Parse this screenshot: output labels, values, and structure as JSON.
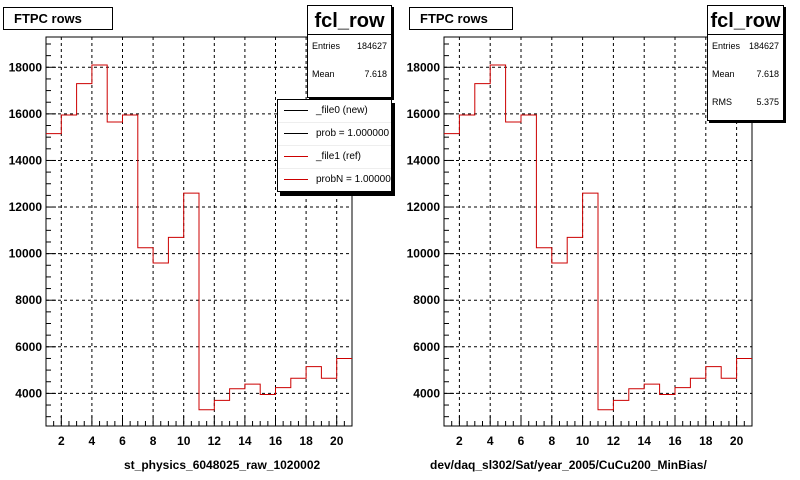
{
  "chart_data": [
    {
      "type": "histogram",
      "title": "FTPC rows",
      "xlabel": "st_physics_6048025_raw_1020002",
      "stats": {
        "name": "fcl_row",
        "entries_label": "Entries",
        "entries": "184627",
        "mean_label": "Mean",
        "mean": "7.618"
      },
      "legend": [
        {
          "label": "_file0 (new)",
          "color": "#000000"
        },
        {
          "label": "prob = 1.000000",
          "color": "#000000"
        },
        {
          "label": "_file1 (ref)",
          "color": "#cc0000"
        },
        {
          "label": "probN = 1.000000",
          "color": "#cc0000"
        }
      ],
      "xlim": [
        1,
        21
      ],
      "ylim": [
        2600,
        19300
      ],
      "xticks": [
        2,
        4,
        6,
        8,
        10,
        12,
        14,
        16,
        18,
        20
      ],
      "yticks": [
        4000,
        6000,
        8000,
        10000,
        12000,
        14000,
        16000,
        18000
      ],
      "bin_edges": [
        1,
        2,
        3,
        4,
        5,
        6,
        7,
        8,
        9,
        10,
        11,
        12,
        13,
        14,
        15,
        16,
        17,
        18,
        19,
        20,
        21
      ],
      "series": [
        {
          "color": "#cc0000",
          "values": [
            15150,
            15950,
            17300,
            18100,
            15650,
            15950,
            10250,
            9600,
            10700,
            12600,
            3300,
            3700,
            4200,
            4400,
            3950,
            4250,
            4650,
            5150,
            4650,
            5500
          ]
        }
      ],
      "grid": true
    },
    {
      "type": "histogram",
      "title": "FTPC rows",
      "xlabel": "dev/daq_sl302/Sat/year_2005/CuCu200_MinBias/",
      "stats": {
        "name": "fcl_row",
        "entries_label": "Entries",
        "entries": "184627",
        "mean_label": "Mean",
        "mean": "7.618",
        "rms_label": "RMS",
        "rms": "5.375"
      },
      "xlim": [
        1,
        21
      ],
      "ylim": [
        2600,
        19300
      ],
      "xticks": [
        2,
        4,
        6,
        8,
        10,
        12,
        14,
        16,
        18,
        20
      ],
      "yticks": [
        4000,
        6000,
        8000,
        10000,
        12000,
        14000,
        16000,
        18000
      ],
      "bin_edges": [
        1,
        2,
        3,
        4,
        5,
        6,
        7,
        8,
        9,
        10,
        11,
        12,
        13,
        14,
        15,
        16,
        17,
        18,
        19,
        20,
        21
      ],
      "series": [
        {
          "color": "#cc0000",
          "values": [
            15150,
            15950,
            17300,
            18100,
            15650,
            15950,
            10250,
            9600,
            10700,
            12600,
            3300,
            3700,
            4200,
            4400,
            3950,
            4250,
            4650,
            5150,
            4650,
            5500
          ]
        }
      ],
      "grid": true
    }
  ]
}
